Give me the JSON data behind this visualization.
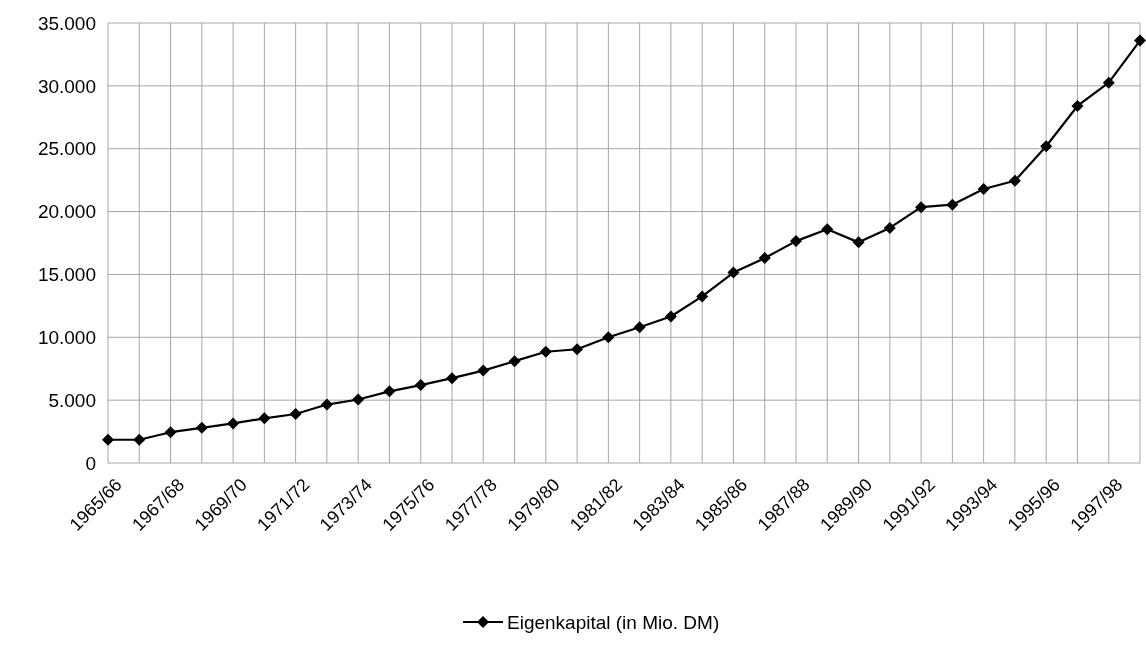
{
  "chart_data": {
    "type": "line",
    "categories": [
      "1965/66",
      null,
      "1967/68",
      null,
      "1969/70",
      null,
      "1971/72",
      null,
      "1973/74",
      null,
      "1975/76",
      null,
      "1977/78",
      null,
      "1979/80",
      null,
      "1981/82",
      null,
      "1983/84",
      null,
      "1985/86",
      null,
      "1987/88",
      null,
      "1989/90",
      null,
      "1991/92",
      null,
      "1993/94",
      null,
      "1995/96",
      null,
      "1997/98",
      null
    ],
    "series": [
      {
        "name": "Eigenkapital (in Mio. DM)",
        "color": "#000000",
        "values": [
          1850,
          1850,
          2450,
          2800,
          3150,
          3550,
          3900,
          4650,
          5050,
          5700,
          6200,
          6750,
          7350,
          8100,
          8850,
          9050,
          10000,
          10800,
          11650,
          13250,
          15150,
          16300,
          17650,
          18600,
          17550,
          18700,
          20350,
          20550,
          21800,
          22450,
          25200,
          28400,
          30250,
          33600
        ]
      }
    ],
    "ylim": [
      0,
      35000
    ],
    "yticks": [
      0,
      {
        "value": 5000,
        "label": "5.000"
      },
      {
        "value": 10000,
        "label": "10.000"
      },
      {
        "value": 15000,
        "label": "15.000"
      },
      {
        "value": 20000,
        "label": "20.000"
      },
      {
        "value": 25000,
        "label": "25.000"
      },
      {
        "value": 30000,
        "label": "30.000"
      },
      {
        "value": 35000,
        "label": "35.000"
      }
    ],
    "grid": true,
    "legend": "bottom",
    "marker": "diamond",
    "line_style": "solid"
  }
}
